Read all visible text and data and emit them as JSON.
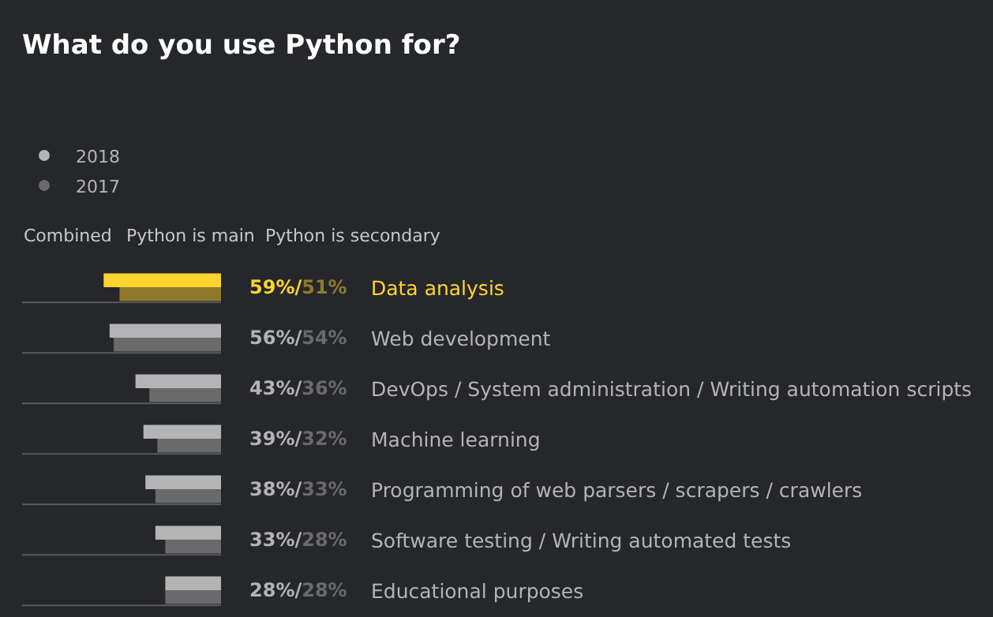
{
  "chart_data": {
    "type": "bar",
    "orientation": "horizontal",
    "title": "What do you use Python for?",
    "categories": [
      "Data analysis",
      "Web development",
      "DevOps / System administration / Writing automation scripts",
      "Machine learning",
      "Programming of web parsers / scrapers / crawlers",
      "Software testing / Writing automated tests",
      "Educational purposes"
    ],
    "series": [
      {
        "name": "2018",
        "color": "#b4b4b4",
        "colors": [
          "#ffd42e",
          "#b4b4b4",
          "#b4b4b4",
          "#b4b4b4",
          "#b4b4b4",
          "#b4b4b4",
          "#b4b4b4"
        ],
        "values": [
          59,
          56,
          43,
          39,
          38,
          33,
          28
        ],
        "value_labels": [
          "59%/",
          "56%/",
          "43%/",
          "39%/",
          "38%/",
          "33%/",
          "28%/"
        ]
      },
      {
        "name": "2017",
        "color": "#6a6a6a",
        "colors": [
          "#8f7a2c",
          "#6a6a6a",
          "#6a6a6a",
          "#6a6a6a",
          "#6a6a6a",
          "#6a6a6a",
          "#6a6a6a"
        ],
        "values": [
          51,
          54,
          36,
          32,
          33,
          28,
          28
        ],
        "value_labels": [
          "51%",
          "54%",
          "36%",
          "32%",
          "33%",
          "28%",
          "28%"
        ]
      }
    ],
    "xlim": [
      100,
      0
    ],
    "tick_labels": false,
    "grid": false,
    "legend": "top left",
    "annotations": [
      "Combined",
      "Python is main",
      "Python is secondary"
    ]
  }
}
